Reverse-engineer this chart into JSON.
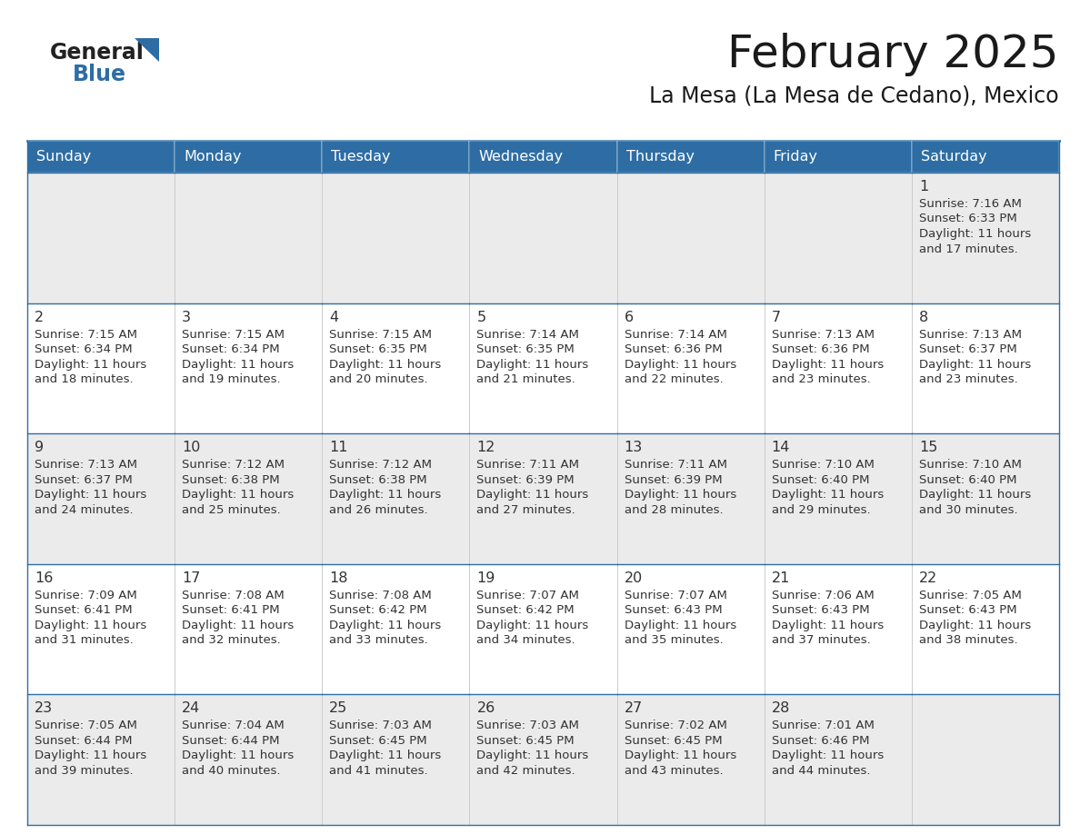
{
  "title": "February 2025",
  "subtitle": "La Mesa (La Mesa de Cedano), Mexico",
  "header_bg": "#2E6DA4",
  "header_text_color": "#FFFFFF",
  "cell_bg_odd": "#EBEBEB",
  "cell_bg_even": "#FFFFFF",
  "border_color": "#2E6DA4",
  "text_color": "#333333",
  "day_number_color": "#333333",
  "days_of_week": [
    "Sunday",
    "Monday",
    "Tuesday",
    "Wednesday",
    "Thursday",
    "Friday",
    "Saturday"
  ],
  "logo_general_color": "#222222",
  "logo_blue_color": "#2E6DA4",
  "calendar": [
    [
      null,
      null,
      null,
      null,
      null,
      null,
      {
        "day": 1,
        "sunrise": "7:16 AM",
        "sunset": "6:33 PM",
        "daylight": "11 hours",
        "daylight2": "and 17 minutes."
      }
    ],
    [
      {
        "day": 2,
        "sunrise": "7:15 AM",
        "sunset": "6:34 PM",
        "daylight": "11 hours",
        "daylight2": "and 18 minutes."
      },
      {
        "day": 3,
        "sunrise": "7:15 AM",
        "sunset": "6:34 PM",
        "daylight": "11 hours",
        "daylight2": "and 19 minutes."
      },
      {
        "day": 4,
        "sunrise": "7:15 AM",
        "sunset": "6:35 PM",
        "daylight": "11 hours",
        "daylight2": "and 20 minutes."
      },
      {
        "day": 5,
        "sunrise": "7:14 AM",
        "sunset": "6:35 PM",
        "daylight": "11 hours",
        "daylight2": "and 21 minutes."
      },
      {
        "day": 6,
        "sunrise": "7:14 AM",
        "sunset": "6:36 PM",
        "daylight": "11 hours",
        "daylight2": "and 22 minutes."
      },
      {
        "day": 7,
        "sunrise": "7:13 AM",
        "sunset": "6:36 PM",
        "daylight": "11 hours",
        "daylight2": "and 23 minutes."
      },
      {
        "day": 8,
        "sunrise": "7:13 AM",
        "sunset": "6:37 PM",
        "daylight": "11 hours",
        "daylight2": "and 23 minutes."
      }
    ],
    [
      {
        "day": 9,
        "sunrise": "7:13 AM",
        "sunset": "6:37 PM",
        "daylight": "11 hours",
        "daylight2": "and 24 minutes."
      },
      {
        "day": 10,
        "sunrise": "7:12 AM",
        "sunset": "6:38 PM",
        "daylight": "11 hours",
        "daylight2": "and 25 minutes."
      },
      {
        "day": 11,
        "sunrise": "7:12 AM",
        "sunset": "6:38 PM",
        "daylight": "11 hours",
        "daylight2": "and 26 minutes."
      },
      {
        "day": 12,
        "sunrise": "7:11 AM",
        "sunset": "6:39 PM",
        "daylight": "11 hours",
        "daylight2": "and 27 minutes."
      },
      {
        "day": 13,
        "sunrise": "7:11 AM",
        "sunset": "6:39 PM",
        "daylight": "11 hours",
        "daylight2": "and 28 minutes."
      },
      {
        "day": 14,
        "sunrise": "7:10 AM",
        "sunset": "6:40 PM",
        "daylight": "11 hours",
        "daylight2": "and 29 minutes."
      },
      {
        "day": 15,
        "sunrise": "7:10 AM",
        "sunset": "6:40 PM",
        "daylight": "11 hours",
        "daylight2": "and 30 minutes."
      }
    ],
    [
      {
        "day": 16,
        "sunrise": "7:09 AM",
        "sunset": "6:41 PM",
        "daylight": "11 hours",
        "daylight2": "and 31 minutes."
      },
      {
        "day": 17,
        "sunrise": "7:08 AM",
        "sunset": "6:41 PM",
        "daylight": "11 hours",
        "daylight2": "and 32 minutes."
      },
      {
        "day": 18,
        "sunrise": "7:08 AM",
        "sunset": "6:42 PM",
        "daylight": "11 hours",
        "daylight2": "and 33 minutes."
      },
      {
        "day": 19,
        "sunrise": "7:07 AM",
        "sunset": "6:42 PM",
        "daylight": "11 hours",
        "daylight2": "and 34 minutes."
      },
      {
        "day": 20,
        "sunrise": "7:07 AM",
        "sunset": "6:43 PM",
        "daylight": "11 hours",
        "daylight2": "and 35 minutes."
      },
      {
        "day": 21,
        "sunrise": "7:06 AM",
        "sunset": "6:43 PM",
        "daylight": "11 hours",
        "daylight2": "and 37 minutes."
      },
      {
        "day": 22,
        "sunrise": "7:05 AM",
        "sunset": "6:43 PM",
        "daylight": "11 hours",
        "daylight2": "and 38 minutes."
      }
    ],
    [
      {
        "day": 23,
        "sunrise": "7:05 AM",
        "sunset": "6:44 PM",
        "daylight": "11 hours",
        "daylight2": "and 39 minutes."
      },
      {
        "day": 24,
        "sunrise": "7:04 AM",
        "sunset": "6:44 PM",
        "daylight": "11 hours",
        "daylight2": "and 40 minutes."
      },
      {
        "day": 25,
        "sunrise": "7:03 AM",
        "sunset": "6:45 PM",
        "daylight": "11 hours",
        "daylight2": "and 41 minutes."
      },
      {
        "day": 26,
        "sunrise": "7:03 AM",
        "sunset": "6:45 PM",
        "daylight": "11 hours",
        "daylight2": "and 42 minutes."
      },
      {
        "day": 27,
        "sunrise": "7:02 AM",
        "sunset": "6:45 PM",
        "daylight": "11 hours",
        "daylight2": "and 43 minutes."
      },
      {
        "day": 28,
        "sunrise": "7:01 AM",
        "sunset": "6:46 PM",
        "daylight": "11 hours",
        "daylight2": "and 44 minutes."
      },
      null
    ]
  ]
}
